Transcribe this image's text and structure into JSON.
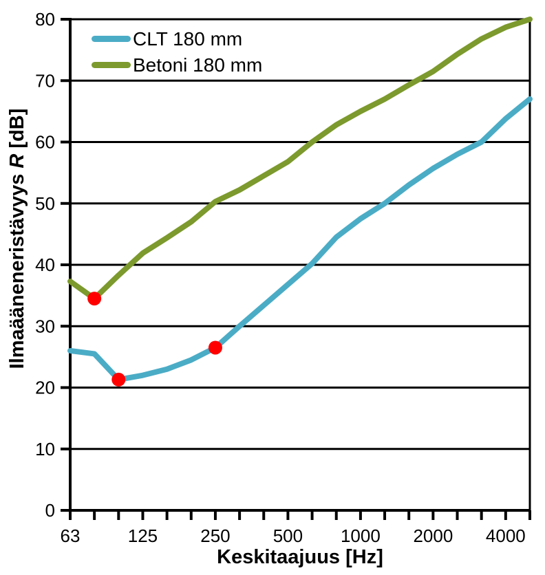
{
  "colors": {
    "clt_line": "#4BACC6",
    "betoni_line": "#7C9A2D",
    "marker": "#FF0000",
    "axis": "#000000",
    "background": "#FFFFFF"
  },
  "labels": {
    "ylabel_prefix": "Ilmaääneneristävyys ",
    "ylabel_R": "R",
    "ylabel_suffix": " [dB]"
  },
  "legend": {
    "position": "top-left-inside",
    "entries": [
      {
        "label": "CLT 180 mm",
        "color": "#4BACC6"
      },
      {
        "label": "Betoni 180 mm",
        "color": "#7C9A2D"
      }
    ]
  },
  "chart_data": {
    "type": "line",
    "title": "",
    "xlabel": "Keskitaajuus [Hz]",
    "ylabel": "Ilmaääneneristävyys R [dB]",
    "xscale": "log-third-octave-bands",
    "ylim": [
      0,
      80
    ],
    "grid": "horizontal-only",
    "x": [
      63,
      80,
      100,
      125,
      160,
      200,
      250,
      315,
      400,
      500,
      630,
      800,
      1000,
      1250,
      1600,
      2000,
      2500,
      3150,
      4000,
      5000
    ],
    "xtick_labels": [
      {
        "freq": 63,
        "label": "63"
      },
      {
        "freq": 125,
        "label": "125"
      },
      {
        "freq": 250,
        "label": "250"
      },
      {
        "freq": 500,
        "label": "500"
      },
      {
        "freq": 1000,
        "label": "1000"
      },
      {
        "freq": 2000,
        "label": "2000"
      },
      {
        "freq": 4000,
        "label": "4000"
      }
    ],
    "yticks": [
      {
        "value": 0,
        "label": "0"
      },
      {
        "value": 10,
        "label": "10"
      },
      {
        "value": 20,
        "label": "20"
      },
      {
        "value": 30,
        "label": "30"
      },
      {
        "value": 40,
        "label": "40"
      },
      {
        "value": 50,
        "label": "50"
      },
      {
        "value": 60,
        "label": "60"
      },
      {
        "value": 70,
        "label": "70"
      },
      {
        "value": 80,
        "label": "80"
      }
    ],
    "series": [
      {
        "name": "CLT 180 mm",
        "color": "#4BACC6",
        "values": [
          26.0,
          25.5,
          21.3,
          22.0,
          23.0,
          24.5,
          26.5,
          30.0,
          33.4,
          36.8,
          40.2,
          44.5,
          47.5,
          50.0,
          53.0,
          55.7,
          58.0,
          60.0,
          63.8,
          67.0
        ]
      },
      {
        "name": "Betoni 180 mm",
        "color": "#7C9A2D",
        "values": [
          37.3,
          34.5,
          38.3,
          41.9,
          44.4,
          47.0,
          50.3,
          52.2,
          54.5,
          56.8,
          60.0,
          62.8,
          65.0,
          67.0,
          69.3,
          71.5,
          74.3,
          76.8,
          78.7,
          80.0
        ]
      }
    ],
    "markers": [
      {
        "series": "Betoni 180 mm",
        "freq": 80,
        "value": 34.5,
        "color": "#FF0000"
      },
      {
        "series": "CLT 180 mm",
        "freq": 100,
        "value": 21.3,
        "color": "#FF0000"
      },
      {
        "series": "CLT 180 mm",
        "freq": 250,
        "value": 26.5,
        "color": "#FF0000"
      }
    ]
  }
}
